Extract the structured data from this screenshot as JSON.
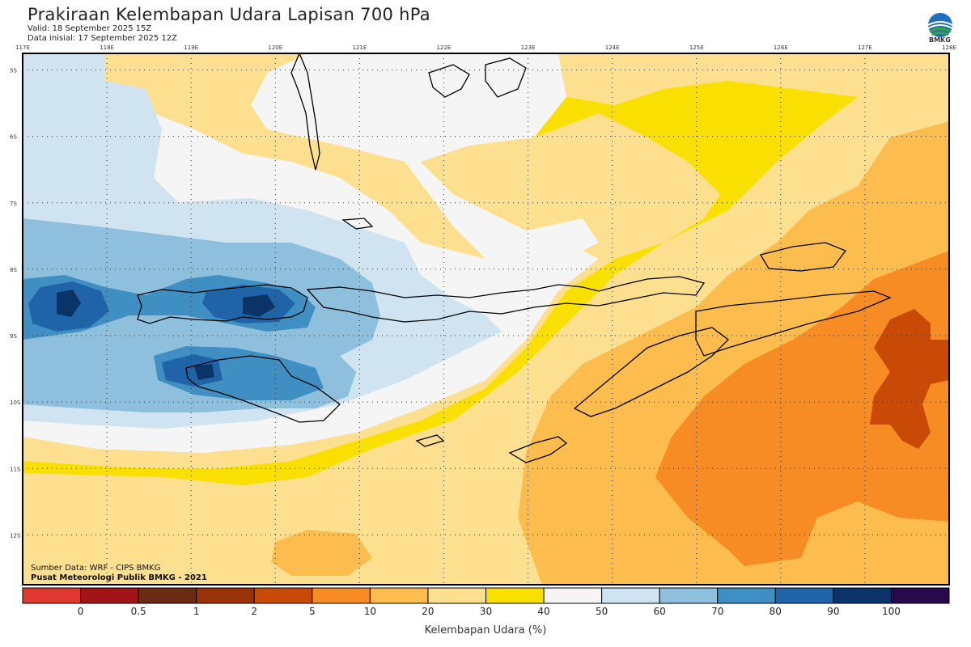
{
  "header": {
    "title": "Prakiraan Kelembapan Udara Lapisan 700 hPa",
    "valid": "Valid: 18 September 2025 15Z",
    "init": "Data inisial: 17 September 2025 12Z"
  },
  "logo": {
    "text": "BMKG",
    "icon": "bmkg-logo-icon"
  },
  "map": {
    "lon_labels": [
      "117E",
      "118E",
      "119E",
      "120E",
      "121E",
      "122E",
      "123E",
      "124E",
      "125E",
      "126E",
      "127E",
      "128E"
    ],
    "lat_labels": [
      "5S",
      "6S",
      "7S",
      "8S",
      "9S",
      "10S",
      "11S",
      "12S"
    ],
    "lon_range": [
      117,
      128
    ],
    "lat_range": [
      -4.75,
      -12.75
    ],
    "grid": "dotted"
  },
  "credits": {
    "source": "Sumber Data: WRF - CIPS BMKG",
    "org": "Pusat Meteorologi Publik BMKG - 2021"
  },
  "colorbar": {
    "title": "Kelembapan Udara (%)",
    "tick_labels": [
      "0",
      "0.5",
      "1",
      "2",
      "5",
      "10",
      "20",
      "30",
      "40",
      "50",
      "60",
      "70",
      "80",
      "90",
      "100"
    ],
    "colors": [
      "#e03a2e",
      "#a31419",
      "#6b2a12",
      "#9a3308",
      "#c84a06",
      "#f78c25",
      "#fdbc4e",
      "#fde08f",
      "#fae000",
      "#f5f5f5",
      "#cfe3f0",
      "#8ec0dd",
      "#3f8fc3",
      "#1f63a8",
      "#0a3468",
      "#260a4a"
    ]
  }
}
